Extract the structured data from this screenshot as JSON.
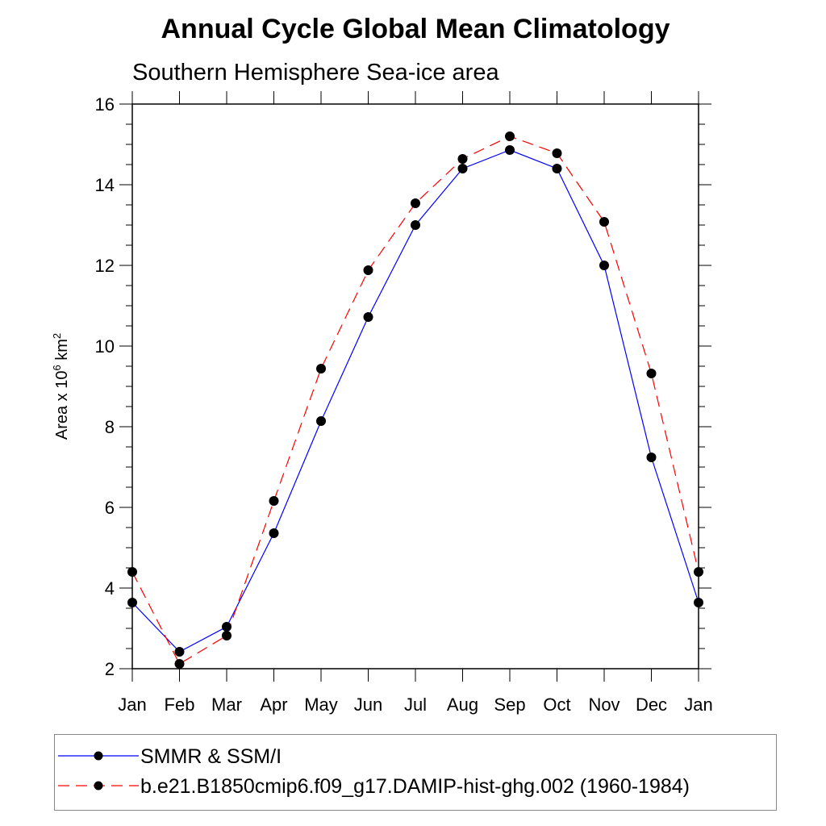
{
  "chart_data": {
    "type": "line",
    "title": "Annual Cycle Global Mean Climatology",
    "subtitle": "Southern Hemisphere Sea-ice area",
    "xlabel": "",
    "ylabel": "Area x 10",
    "ylabel_sup1": "6",
    "ylabel_unit": " km",
    "ylabel_sup2": "2",
    "categories": [
      "Jan",
      "Feb",
      "Mar",
      "Apr",
      "May",
      "Jun",
      "Jul",
      "Aug",
      "Sep",
      "Oct",
      "Nov",
      "Dec",
      "Jan"
    ],
    "ylim": [
      2,
      16
    ],
    "yticks": [
      2,
      4,
      6,
      8,
      10,
      12,
      14,
      16
    ],
    "ytick_labels": [
      "2",
      "4",
      "6",
      "8",
      "10",
      "12",
      "14",
      "16"
    ],
    "grid": false,
    "legend_position": "bottom",
    "series": [
      {
        "name": "SMMR & SSM/I",
        "color": "#0000ff",
        "dash": "solid",
        "values": [
          3.64,
          2.42,
          3.04,
          5.36,
          8.14,
          10.72,
          13.0,
          14.4,
          14.86,
          14.4,
          12.0,
          7.24,
          3.64
        ]
      },
      {
        "name": "b.e21.B1850cmip6.f09_g17.DAMIP-hist-ghg.002 (1960-1984)",
        "color": "#ff0000",
        "dash": "dashed",
        "values": [
          4.4,
          2.12,
          2.82,
          6.16,
          9.44,
          11.88,
          13.54,
          14.64,
          15.2,
          14.78,
          13.08,
          9.32,
          4.4
        ]
      }
    ]
  }
}
